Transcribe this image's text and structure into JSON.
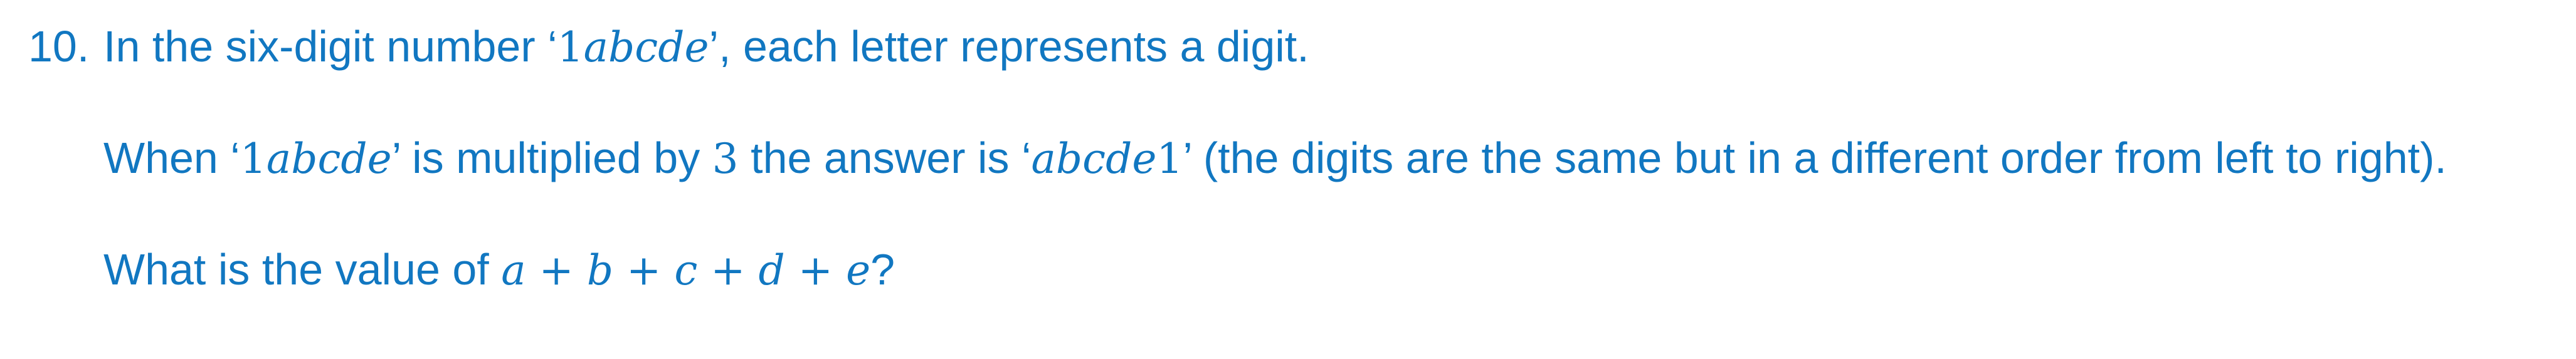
{
  "question": {
    "number": "10.",
    "line1": {
      "before": "In the six-digit number ‘",
      "num_1": "1",
      "expr": "abcde",
      "after": "’, each letter represents a digit."
    },
    "line2": {
      "prefix": "When ‘",
      "num_1": "1",
      "expr1": "abcde",
      "mid1": "’ is multiplied by ",
      "three": "3",
      "mid2": " the answer is ‘",
      "expr2": "abcde",
      "num_1b": "1",
      "suffix": "’ (the digits are the same but in a different order from left to right)."
    },
    "line3": {
      "prefix": "What is the value of ",
      "expr": "a + b + c + d + e",
      "suffix": "?"
    }
  }
}
